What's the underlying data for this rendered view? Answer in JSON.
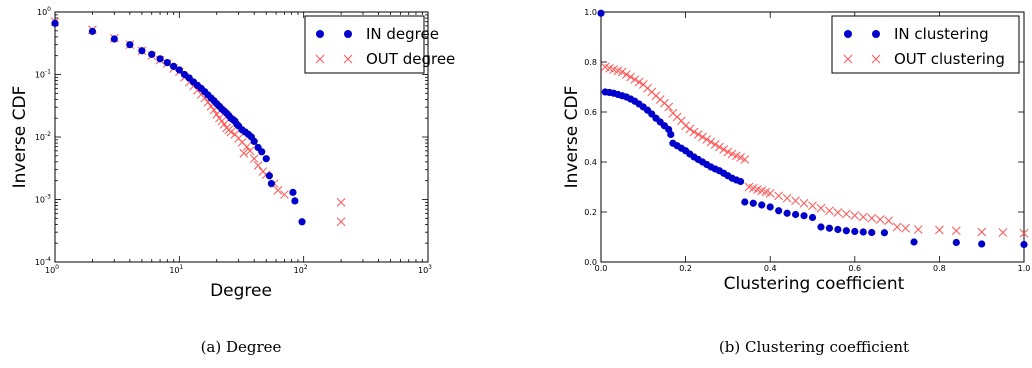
{
  "chart_data": [
    {
      "type": "scatter",
      "scale": "log-log",
      "caption": "(a)  Degree",
      "xlabel": "Degree",
      "ylabel": "Inverse CDF",
      "xlim": [
        1,
        1000
      ],
      "ylim": [
        0.0001,
        1
      ],
      "x_ticks": [
        {
          "base": "10",
          "exp": "0"
        },
        {
          "base": "10",
          "exp": "1"
        },
        {
          "base": "10",
          "exp": "2"
        },
        {
          "base": "10",
          "exp": "3"
        }
      ],
      "y_ticks": [
        {
          "base": "10",
          "exp": "-4"
        },
        {
          "base": "10",
          "exp": "-3"
        },
        {
          "base": "10",
          "exp": "-2"
        },
        {
          "base": "10",
          "exp": "-1"
        },
        {
          "base": "10",
          "exp": "0"
        }
      ],
      "legend_position": "top-right",
      "series": [
        {
          "name": "IN degree",
          "marker": "circle",
          "color": "#0000cc",
          "points": [
            [
              1,
              0.66
            ],
            [
              2,
              0.49
            ],
            [
              3,
              0.37
            ],
            [
              4,
              0.3
            ],
            [
              5,
              0.24
            ],
            [
              6,
              0.21
            ],
            [
              7,
              0.178
            ],
            [
              8,
              0.155
            ],
            [
              9,
              0.135
            ],
            [
              10,
              0.118
            ],
            [
              11,
              0.1
            ],
            [
              12,
              0.088
            ],
            [
              13,
              0.076
            ],
            [
              14,
              0.067
            ],
            [
              15,
              0.06
            ],
            [
              16,
              0.053
            ],
            [
              17,
              0.047
            ],
            [
              18,
              0.042
            ],
            [
              19,
              0.038
            ],
            [
              20,
              0.034
            ],
            [
              21,
              0.031
            ],
            [
              22,
              0.028
            ],
            [
              23,
              0.026
            ],
            [
              24,
              0.024
            ],
            [
              25,
              0.022
            ],
            [
              26,
              0.02
            ],
            [
              27,
              0.019
            ],
            [
              28,
              0.018
            ],
            [
              29,
              0.016
            ],
            [
              30,
              0.015
            ],
            [
              32,
              0.013
            ],
            [
              34,
              0.012
            ],
            [
              36,
              0.011
            ],
            [
              38,
              0.01
            ],
            [
              40,
              0.0085
            ],
            [
              43,
              0.0068
            ],
            [
              46,
              0.0058
            ],
            [
              50,
              0.0045
            ],
            [
              53,
              0.0024
            ],
            [
              55,
              0.0018
            ],
            [
              82,
              0.0013
            ],
            [
              85,
              0.00095
            ],
            [
              97,
              0.00044
            ]
          ]
        },
        {
          "name": "OUT degree",
          "marker": "x",
          "color": "#ff5555",
          "points": [
            [
              1,
              0.7
            ],
            [
              2,
              0.52
            ],
            [
              3,
              0.38
            ],
            [
              4,
              0.3
            ],
            [
              5,
              0.24
            ],
            [
              6,
              0.2
            ],
            [
              7,
              0.17
            ],
            [
              8,
              0.15
            ],
            [
              9,
              0.125
            ],
            [
              10,
              0.11
            ],
            [
              11,
              0.09
            ],
            [
              12,
              0.075
            ],
            [
              13,
              0.065
            ],
            [
              14,
              0.056
            ],
            [
              15,
              0.048
            ],
            [
              16,
              0.042
            ],
            [
              17,
              0.036
            ],
            [
              18,
              0.031
            ],
            [
              19,
              0.027
            ],
            [
              20,
              0.023
            ],
            [
              21,
              0.02
            ],
            [
              22,
              0.018
            ],
            [
              23,
              0.016
            ],
            [
              24,
              0.014
            ],
            [
              25,
              0.013
            ],
            [
              26,
              0.012
            ],
            [
              28,
              0.011
            ],
            [
              30,
              0.0095
            ],
            [
              32,
              0.0082
            ],
            [
              33,
              0.0055
            ],
            [
              35,
              0.007
            ],
            [
              37,
              0.006
            ],
            [
              40,
              0.0045
            ],
            [
              43,
              0.0035
            ],
            [
              47,
              0.0028
            ],
            [
              50,
              0.0025
            ],
            [
              58,
              0.0018
            ],
            [
              62,
              0.0014
            ],
            [
              70,
              0.0012
            ],
            [
              200,
              0.0009
            ],
            [
              200,
              0.00044
            ]
          ]
        }
      ]
    },
    {
      "type": "scatter",
      "scale": "linear",
      "caption": "(b)  Clustering coefficient",
      "xlabel": "Clustering coefficient",
      "ylabel": "Inverse CDF",
      "xlim": [
        0,
        1
      ],
      "ylim": [
        0,
        1
      ],
      "x_ticks": [
        "0.0",
        "0.2",
        "0.4",
        "0.6",
        "0.8",
        "1.0"
      ],
      "y_ticks": [
        "0.0",
        "0.2",
        "0.4",
        "0.6",
        "0.8",
        "1.0"
      ],
      "legend_position": "top-right",
      "series": [
        {
          "name": "IN clustering",
          "marker": "circle",
          "color": "#0000cc",
          "points": [
            [
              0.0,
              0.995
            ],
            [
              0.01,
              0.68
            ],
            [
              0.02,
              0.678
            ],
            [
              0.03,
              0.675
            ],
            [
              0.04,
              0.67
            ],
            [
              0.05,
              0.665
            ],
            [
              0.06,
              0.66
            ],
            [
              0.07,
              0.652
            ],
            [
              0.08,
              0.643
            ],
            [
              0.09,
              0.632
            ],
            [
              0.1,
              0.62
            ],
            [
              0.11,
              0.607
            ],
            [
              0.12,
              0.592
            ],
            [
              0.13,
              0.575
            ],
            [
              0.14,
              0.56
            ],
            [
              0.15,
              0.545
            ],
            [
              0.16,
              0.53
            ],
            [
              0.165,
              0.51
            ],
            [
              0.17,
              0.475
            ],
            [
              0.18,
              0.465
            ],
            [
              0.19,
              0.455
            ],
            [
              0.2,
              0.445
            ],
            [
              0.21,
              0.432
            ],
            [
              0.22,
              0.42
            ],
            [
              0.23,
              0.41
            ],
            [
              0.24,
              0.4
            ],
            [
              0.25,
              0.39
            ],
            [
              0.26,
              0.38
            ],
            [
              0.27,
              0.372
            ],
            [
              0.28,
              0.365
            ],
            [
              0.29,
              0.355
            ],
            [
              0.3,
              0.345
            ],
            [
              0.31,
              0.335
            ],
            [
              0.32,
              0.328
            ],
            [
              0.33,
              0.322
            ],
            [
              0.34,
              0.24
            ],
            [
              0.36,
              0.235
            ],
            [
              0.38,
              0.228
            ],
            [
              0.4,
              0.22
            ],
            [
              0.42,
              0.205
            ],
            [
              0.44,
              0.195
            ],
            [
              0.46,
              0.19
            ],
            [
              0.48,
              0.185
            ],
            [
              0.5,
              0.178
            ],
            [
              0.52,
              0.14
            ],
            [
              0.54,
              0.135
            ],
            [
              0.56,
              0.13
            ],
            [
              0.58,
              0.125
            ],
            [
              0.6,
              0.122
            ],
            [
              0.62,
              0.12
            ],
            [
              0.64,
              0.118
            ],
            [
              0.67,
              0.117
            ],
            [
              0.74,
              0.08
            ],
            [
              0.84,
              0.078
            ],
            [
              0.9,
              0.072
            ],
            [
              1.0,
              0.07
            ]
          ]
        },
        {
          "name": "OUT clustering",
          "marker": "x",
          "color": "#ff5555",
          "points": [
            [
              0.01,
              0.78
            ],
            [
              0.02,
              0.775
            ],
            [
              0.03,
              0.77
            ],
            [
              0.04,
              0.765
            ],
            [
              0.05,
              0.76
            ],
            [
              0.06,
              0.75
            ],
            [
              0.07,
              0.74
            ],
            [
              0.08,
              0.73
            ],
            [
              0.09,
              0.72
            ],
            [
              0.1,
              0.71
            ],
            [
              0.11,
              0.695
            ],
            [
              0.12,
              0.68
            ],
            [
              0.13,
              0.665
            ],
            [
              0.14,
              0.65
            ],
            [
              0.15,
              0.635
            ],
            [
              0.16,
              0.62
            ],
            [
              0.17,
              0.595
            ],
            [
              0.18,
              0.58
            ],
            [
              0.19,
              0.565
            ],
            [
              0.2,
              0.545
            ],
            [
              0.21,
              0.532
            ],
            [
              0.22,
              0.52
            ],
            [
              0.23,
              0.51
            ],
            [
              0.24,
              0.5
            ],
            [
              0.25,
              0.49
            ],
            [
              0.26,
              0.48
            ],
            [
              0.27,
              0.47
            ],
            [
              0.28,
              0.46
            ],
            [
              0.29,
              0.45
            ],
            [
              0.3,
              0.44
            ],
            [
              0.31,
              0.432
            ],
            [
              0.32,
              0.425
            ],
            [
              0.33,
              0.418
            ],
            [
              0.34,
              0.41
            ],
            [
              0.35,
              0.3
            ],
            [
              0.36,
              0.295
            ],
            [
              0.37,
              0.29
            ],
            [
              0.38,
              0.285
            ],
            [
              0.39,
              0.28
            ],
            [
              0.4,
              0.275
            ],
            [
              0.42,
              0.265
            ],
            [
              0.44,
              0.255
            ],
            [
              0.46,
              0.245
            ],
            [
              0.48,
              0.235
            ],
            [
              0.5,
              0.225
            ],
            [
              0.52,
              0.215
            ],
            [
              0.54,
              0.205
            ],
            [
              0.56,
              0.198
            ],
            [
              0.58,
              0.192
            ],
            [
              0.6,
              0.186
            ],
            [
              0.62,
              0.18
            ],
            [
              0.64,
              0.175
            ],
            [
              0.66,
              0.17
            ],
            [
              0.68,
              0.165
            ],
            [
              0.7,
              0.14
            ],
            [
              0.72,
              0.135
            ],
            [
              0.75,
              0.13
            ],
            [
              0.8,
              0.128
            ],
            [
              0.84,
              0.125
            ],
            [
              0.9,
              0.12
            ],
            [
              0.95,
              0.118
            ],
            [
              1.0,
              0.115
            ]
          ]
        }
      ]
    }
  ]
}
